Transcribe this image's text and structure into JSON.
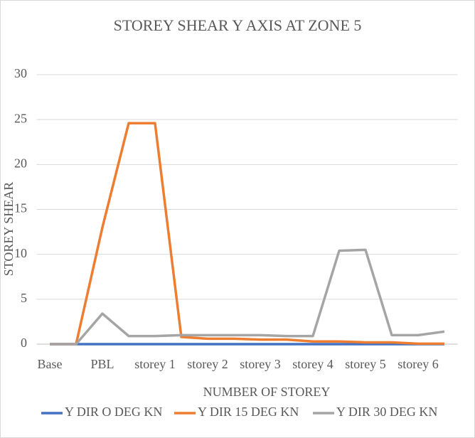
{
  "chart_data": {
    "type": "line",
    "title": "STOREY SHEAR Y AXIS AT ZONE 5",
    "x_label": "NUMBER OF STOREY",
    "y_label": "STOREY SHEAR",
    "categories": [
      "Base",
      null,
      "PBL",
      null,
      "storey 1",
      null,
      "storey 2",
      null,
      "storey 3",
      null,
      "storey 4",
      null,
      "storey 5",
      null,
      "storey 6",
      null
    ],
    "series": [
      {
        "name": "Y DIR O DEG KN",
        "color": "#4472c4",
        "values": [
          0,
          0,
          0,
          0,
          0,
          0,
          0,
          0,
          0,
          0,
          0,
          0,
          0,
          0,
          0,
          0
        ]
      },
      {
        "name": "Y DIR 15 DEG  KN",
        "color": "#ed7d31",
        "values": [
          0,
          0,
          13,
          24.6,
          24.6,
          0.8,
          0.6,
          0.6,
          0.5,
          0.5,
          0.3,
          0.3,
          0.2,
          0.2,
          0.05,
          0.05
        ]
      },
      {
        "name": "Y DIR 30 DEG KN",
        "color": "#a5a5a5",
        "values": [
          0,
          0,
          3.4,
          0.9,
          0.9,
          1.0,
          1.0,
          1.0,
          1.0,
          0.9,
          0.9,
          10.4,
          10.5,
          1.0,
          1.0,
          1.4
        ]
      }
    ],
    "ylim": [
      0,
      30
    ],
    "yticks": [
      0,
      5,
      10,
      15,
      20,
      25,
      30
    ],
    "grid": true,
    "legend": "bottom"
  }
}
